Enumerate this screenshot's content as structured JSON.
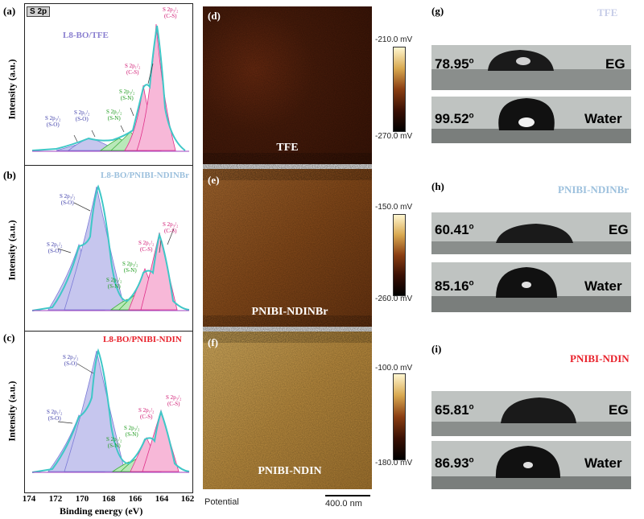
{
  "xps": {
    "badge": "S 2p",
    "xlabel": "Binding energy (eV)",
    "ylabel": "Intensity (a.u.)",
    "xticks": [
      "174",
      "172",
      "170",
      "168",
      "166",
      "164",
      "162"
    ],
    "panels": [
      {
        "label": "(a)",
        "sample": "L8-BO/TFE",
        "sample_color": "#8a7fd0",
        "annotations": [
          {
            "text": "S 2p₃/₂\n(S-O)",
            "tone": "blue"
          },
          {
            "text": "S 2p₁/₂\n(S-O)",
            "tone": "blue"
          },
          {
            "text": "S 2p₃/₂\n(S-N)",
            "tone": "green"
          },
          {
            "text": "S 2p₁/₂\n(S-N)",
            "tone": "green"
          },
          {
            "text": "S 2p₁/₂\n(C-S)",
            "tone": "pink"
          },
          {
            "text": "S 2p₃/₂\n(C-S)",
            "tone": "pink"
          }
        ]
      },
      {
        "label": "(b)",
        "sample": "L8-BO/PNIBI-NDINBr",
        "sample_color": "#9cc0dd",
        "annotations": [
          {
            "text": "S 2p₃/₂\n(S-O)",
            "tone": "blue"
          },
          {
            "text": "S 2p₁/₂\n(S-O)",
            "tone": "blue"
          },
          {
            "text": "S 2p₃/₂\n(S-N)",
            "tone": "green"
          },
          {
            "text": "S 2p₁/₂\n(S-N)",
            "tone": "green"
          },
          {
            "text": "S 2p₁/₂\n(C-S)",
            "tone": "pink"
          },
          {
            "text": "S 2p₃/₂\n(C-S)",
            "tone": "pink"
          }
        ]
      },
      {
        "label": "(c)",
        "sample": "L8-BO/PNIBI-NDIN",
        "sample_color": "#e8202a",
        "annotations": [
          {
            "text": "S 2p₃/₂\n(S-O)",
            "tone": "blue"
          },
          {
            "text": "S 2p₁/₂\n(S-O)",
            "tone": "blue"
          },
          {
            "text": "S 2p₁/₂\n(S-N)",
            "tone": "green"
          },
          {
            "text": "S 2p₃/₂\n(S-N)",
            "tone": "green"
          },
          {
            "text": "S 2p₁/₂\n(C-S)",
            "tone": "pink"
          },
          {
            "text": "S 2p₃/₂\n(C-S)",
            "tone": "pink"
          }
        ]
      }
    ]
  },
  "afm": {
    "footer_label": "Potential",
    "scale_bar": "400.0 nm",
    "panels": [
      {
        "label": "(d)",
        "sample": "TFE",
        "cbar_top": "-210.0 mV",
        "cbar_bottom": "-270.0 mV",
        "tone": "dark"
      },
      {
        "label": "(e)",
        "sample": "PNIBI-NDINBr",
        "cbar_top": "-150.0 mV",
        "cbar_bottom": "-260.0 mV",
        "tone": "mid"
      },
      {
        "label": "(f)",
        "sample": "PNIBI-NDIN",
        "cbar_top": "-100.0 mV",
        "cbar_bottom": "-180.0 mV",
        "tone": "light"
      }
    ]
  },
  "contact_angle": {
    "panels": [
      {
        "label": "(g)",
        "sample": "TFE",
        "sample_color": "#c7cde8",
        "rows": [
          {
            "angle": "78.95",
            "liquid": "EG"
          },
          {
            "angle": "99.52",
            "liquid": "Water"
          }
        ]
      },
      {
        "label": "(h)",
        "sample": "PNIBI-NDINBr",
        "sample_color": "#9cc0dd",
        "rows": [
          {
            "angle": "60.41",
            "liquid": "EG"
          },
          {
            "angle": "85.16",
            "liquid": "Water"
          }
        ]
      },
      {
        "label": "(i)",
        "sample": "PNIBI-NDIN",
        "sample_color": "#e8202a",
        "rows": [
          {
            "angle": "65.81",
            "liquid": "EG"
          },
          {
            "angle": "86.93",
            "liquid": "Water"
          }
        ]
      }
    ],
    "degree_symbol": "o"
  }
}
